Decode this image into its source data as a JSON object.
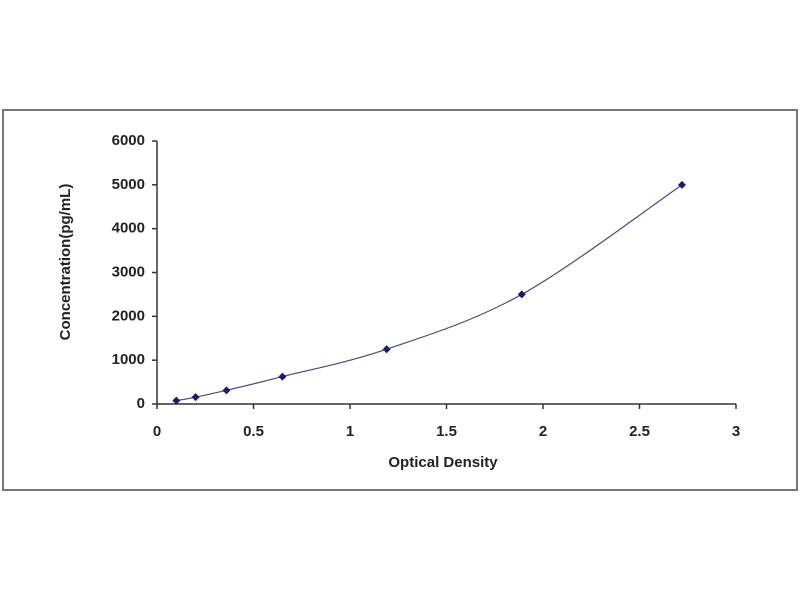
{
  "chart_data": {
    "type": "scatter",
    "x_label": "Optical Density",
    "y_label": "Concentration(pg/mL)",
    "x": [
      0.1,
      0.2,
      0.36,
      0.65,
      1.19,
      1.89,
      2.72
    ],
    "values": [
      78,
      156,
      312,
      625,
      1250,
      2500,
      5000
    ],
    "color": "#1c1c6e",
    "line": true,
    "xlim": [
      0,
      3
    ],
    "xticks": [
      0,
      0.5,
      1,
      1.5,
      2,
      2.5,
      3
    ],
    "ylim": [
      0,
      6000
    ],
    "yticks": [
      0,
      1000,
      2000,
      3000,
      4000,
      5000,
      6000
    ]
  }
}
